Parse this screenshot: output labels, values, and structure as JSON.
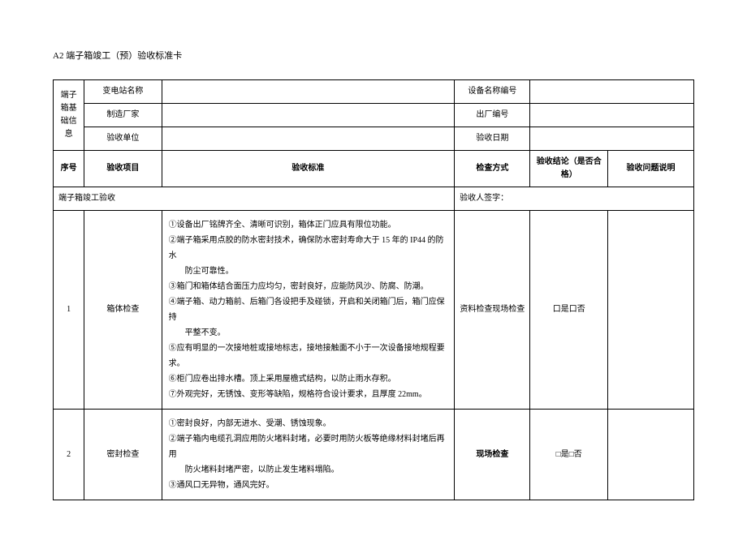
{
  "title": "A2 端子箱竣工（预）验收标准卡",
  "info_block_label": "端子箱基础信息",
  "info_rows": [
    {
      "left_label": "变电站名称",
      "right_label": "设备名称编号"
    },
    {
      "left_label": "制造厂家",
      "right_label": "出厂编号"
    },
    {
      "left_label": "验收单位",
      "right_label": "验收日期"
    }
  ],
  "header": {
    "seq": "序号",
    "item": "验收项目",
    "criteria": "验收标准",
    "method": "检查方式",
    "conclusion": "验收结论（是否合格）",
    "issue": "验收问题说明"
  },
  "section": {
    "left": "端子箱竣工验收",
    "right": "验收人签字："
  },
  "rows": [
    {
      "seq": "1",
      "item": "箱体检查",
      "criteria_lines": [
        {
          "text": "①设备出厂铭牌齐全、清晰可识别，箱体正门应具有限位功能。",
          "indent": false
        },
        {
          "text": "②端子箱采用点胶的防水密封技术，确保防水密封寿命大于 15 年的 IP44 的防水",
          "indent": false
        },
        {
          "text": "防尘可靠性。",
          "indent": true
        },
        {
          "text": "③箱门和箱体结合面压力应均匀，密封良好，应能防风沙、防腐、防潮。",
          "indent": false
        },
        {
          "text": "④端子箱、动力箱前、后箱门各设把手及碰锁，开启和关闭箱门后，箱门应保持",
          "indent": false
        },
        {
          "text": "平整不变。",
          "indent": true
        },
        {
          "text": "⑤应有明显的一次接地桩或接地标志，接地接触面不小于一次设备接地规程要求。",
          "indent": false
        },
        {
          "text": "⑥柜门应卷出排水槽。顶上采用屋檐式结构，以防止雨水存积。",
          "indent": false
        },
        {
          "text": "⑦外观完好，无锈蚀、变形等缺陷，规格符合设计要求，且厚度 22mm。",
          "indent": false
        }
      ],
      "method": "资料检查现场检查",
      "conclusion": "口是口否",
      "method_bold": false
    },
    {
      "seq": "2",
      "item": "密封检查",
      "criteria_lines": [
        {
          "text": "①密封良好，内部无进水、受潮、锈蚀现象。",
          "indent": false
        },
        {
          "text": "②端子箱内电缆孔洞应用防火堵料封堵，必要时用防火板等绝缘材料封堵后再用",
          "indent": false
        },
        {
          "text": "防火堵料封堵严密，以防止发生堵料塌陷。",
          "indent": true
        },
        {
          "text": "③通风口无异物，通风完好。",
          "indent": false
        }
      ],
      "method": "现场检查",
      "conclusion": "□是□否",
      "method_bold": true
    }
  ]
}
